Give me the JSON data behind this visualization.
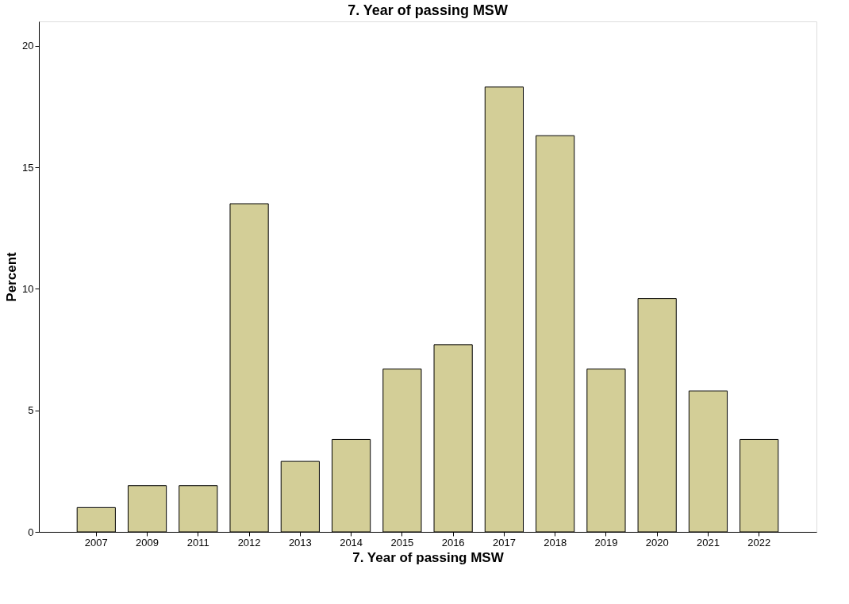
{
  "chart_data": {
    "type": "bar",
    "title": "7. Year of passing MSW",
    "xlabel": "7. Year of passing MSW",
    "ylabel": "Percent",
    "categories": [
      "2007",
      "2009",
      "2011",
      "2012",
      "2013",
      "2014",
      "2015",
      "2016",
      "2017",
      "2018",
      "2019",
      "2020",
      "2021",
      "2022"
    ],
    "values": [
      1.0,
      1.9,
      1.9,
      13.5,
      2.9,
      3.8,
      6.7,
      7.7,
      18.3,
      16.3,
      6.7,
      9.6,
      5.8,
      3.8
    ],
    "color": "#d3ce97",
    "ylim": [
      0,
      21
    ],
    "yticks": [
      0,
      5,
      10,
      15,
      20
    ],
    "grid": false
  }
}
